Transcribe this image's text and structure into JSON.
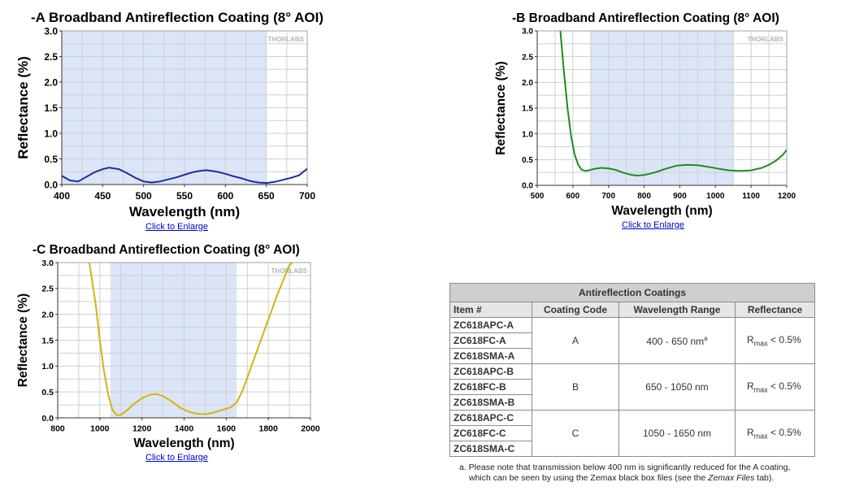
{
  "chart_data": [
    {
      "type": "line",
      "title": "-A Broadband Antireflection Coating (8° AOI)",
      "xlabel": "Wavelength (nm)",
      "ylabel": "Reflectance (%)",
      "xlim": [
        400,
        700
      ],
      "ylim": [
        0,
        3
      ],
      "xticks": [
        "400",
        "450",
        "500",
        "550",
        "600",
        "650",
        "700"
      ],
      "yticks": [
        "0.0",
        "0.5",
        "1.0",
        "1.5",
        "2.0",
        "2.5",
        "3.0"
      ],
      "grid": true,
      "shaded_band": [
        400,
        650
      ],
      "watermark": "THORLABS",
      "series": [
        {
          "color": "#1a2ea0",
          "x": [
            400,
            410,
            420,
            430,
            440,
            450,
            458,
            470,
            480,
            490,
            500,
            510,
            520,
            530,
            540,
            550,
            560,
            570,
            577,
            590,
            600,
            610,
            620,
            630,
            640,
            650,
            660,
            670,
            680,
            690,
            700
          ],
          "y": [
            0.17,
            0.08,
            0.06,
            0.15,
            0.24,
            0.3,
            0.33,
            0.3,
            0.22,
            0.13,
            0.06,
            0.04,
            0.06,
            0.1,
            0.14,
            0.19,
            0.24,
            0.27,
            0.28,
            0.25,
            0.21,
            0.16,
            0.12,
            0.07,
            0.04,
            0.03,
            0.05,
            0.09,
            0.13,
            0.18,
            0.31
          ]
        }
      ]
    },
    {
      "type": "line",
      "title": "-B Broadband Antireflection Coating (8° AOI)",
      "xlabel": "Wavelength (nm)",
      "ylabel": "Reflectance (%)",
      "xlim": [
        500,
        1200
      ],
      "ylim": [
        0,
        3
      ],
      "xticks": [
        "500",
        "600",
        "700",
        "800",
        "900",
        "1000",
        "1100",
        "1200"
      ],
      "yticks": [
        "0.0",
        "0.5",
        "1.0",
        "1.5",
        "2.0",
        "2.5",
        "3.0"
      ],
      "grid": true,
      "shaded_band": [
        650,
        1050
      ],
      "watermark": "THORLABS",
      "series": [
        {
          "color": "#1f8a22",
          "x": [
            565,
            575,
            585,
            595,
            605,
            615,
            625,
            635,
            645,
            660,
            680,
            700,
            720,
            740,
            760,
            780,
            800,
            830,
            860,
            890,
            920,
            950,
            980,
            1010,
            1040,
            1070,
            1100,
            1130,
            1150,
            1170,
            1190,
            1200
          ],
          "y": [
            3.0,
            2.2,
            1.5,
            0.95,
            0.6,
            0.4,
            0.3,
            0.28,
            0.29,
            0.32,
            0.34,
            0.33,
            0.3,
            0.25,
            0.21,
            0.19,
            0.2,
            0.25,
            0.32,
            0.38,
            0.4,
            0.39,
            0.36,
            0.32,
            0.29,
            0.28,
            0.29,
            0.34,
            0.4,
            0.48,
            0.6,
            0.69
          ]
        }
      ]
    },
    {
      "type": "line",
      "title": "-C Broadband Antireflection Coating (8° AOI)",
      "xlabel": "Wavelength (nm)",
      "ylabel": "Reflectance (%)",
      "xlim": [
        800,
        2000
      ],
      "ylim": [
        0,
        3
      ],
      "xticks": [
        "800",
        "1000",
        "1200",
        "1400",
        "1600",
        "1800",
        "2000"
      ],
      "yticks": [
        "0.0",
        "0.5",
        "1.0",
        "1.5",
        "2.0",
        "2.5",
        "3.0"
      ],
      "grid": true,
      "shaded_band": [
        1050,
        1650
      ],
      "watermark": "THORLABS",
      "series": [
        {
          "color": "#d4b40c",
          "x": [
            950,
            980,
            1000,
            1020,
            1040,
            1060,
            1080,
            1100,
            1130,
            1160,
            1200,
            1240,
            1270,
            1300,
            1340,
            1380,
            1420,
            1460,
            1500,
            1540,
            1580,
            1620,
            1650,
            1680,
            1720,
            1760,
            1800,
            1840,
            1870,
            1900,
            1915
          ],
          "y": [
            3.0,
            2.2,
            1.5,
            0.9,
            0.45,
            0.15,
            0.05,
            0.06,
            0.15,
            0.26,
            0.38,
            0.45,
            0.46,
            0.42,
            0.32,
            0.2,
            0.12,
            0.08,
            0.07,
            0.1,
            0.15,
            0.2,
            0.3,
            0.55,
            1.0,
            1.45,
            1.9,
            2.35,
            2.65,
            2.95,
            3.0
          ]
        }
      ]
    }
  ],
  "links": {
    "enlarge_a": "Click to Enlarge",
    "enlarge_b": "Click to Enlarge",
    "enlarge_c": "Click to Enlarge"
  },
  "table": {
    "title": "Antireflection Coatings",
    "headers": [
      "Item #",
      "Coating Code",
      "Wavelength Range",
      "Reflectance"
    ],
    "groups": [
      {
        "items": [
          "ZC618APC-A",
          "ZC618FC-A",
          "ZC618SMA-A"
        ],
        "code": "A",
        "range": "400 - 650 nm",
        "range_sup": "a",
        "refl_prefix": "R",
        "refl_sub": "max",
        "refl_suffix": " < 0.5%"
      },
      {
        "items": [
          "ZC618APC-B",
          "ZC618FC-B",
          "ZC618SMA-B"
        ],
        "code": "B",
        "range": "650 - 1050 nm",
        "range_sup": "",
        "refl_prefix": "R",
        "refl_sub": "max",
        "refl_suffix": " < 0.5%"
      },
      {
        "items": [
          "ZC618APC-C",
          "ZC618FC-C",
          "ZC618SMA-C"
        ],
        "code": "C",
        "range": "1050 - 1650 nm",
        "range_sup": "",
        "refl_prefix": "R",
        "refl_sub": "max",
        "refl_suffix": " < 0.5%"
      }
    ]
  },
  "footnote": {
    "line1": "a. Please note that transmission below 400 nm is significantly reduced for the A coating,",
    "line2_a": "which can be seen by using the Zemax black box files (see the ",
    "line2_italic": "Zemax Files",
    "line2_b": " tab)."
  },
  "colors": {
    "shade": "#dce5f7",
    "grid": "#cfcfcf",
    "frame": "#a0a0a0"
  }
}
